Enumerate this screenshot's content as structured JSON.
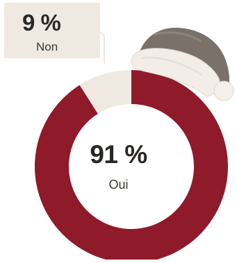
{
  "chart_data": {
    "type": "pie",
    "donut": true,
    "slices": [
      {
        "label": "Oui",
        "value": 91,
        "value_text": "91 %",
        "color": "#8e1a2a"
      },
      {
        "label": "Non",
        "value": 9,
        "value_text": "9 %",
        "color": "#efe9e1"
      }
    ]
  },
  "decoration": {
    "hat_icon": "santa-hat-icon"
  }
}
